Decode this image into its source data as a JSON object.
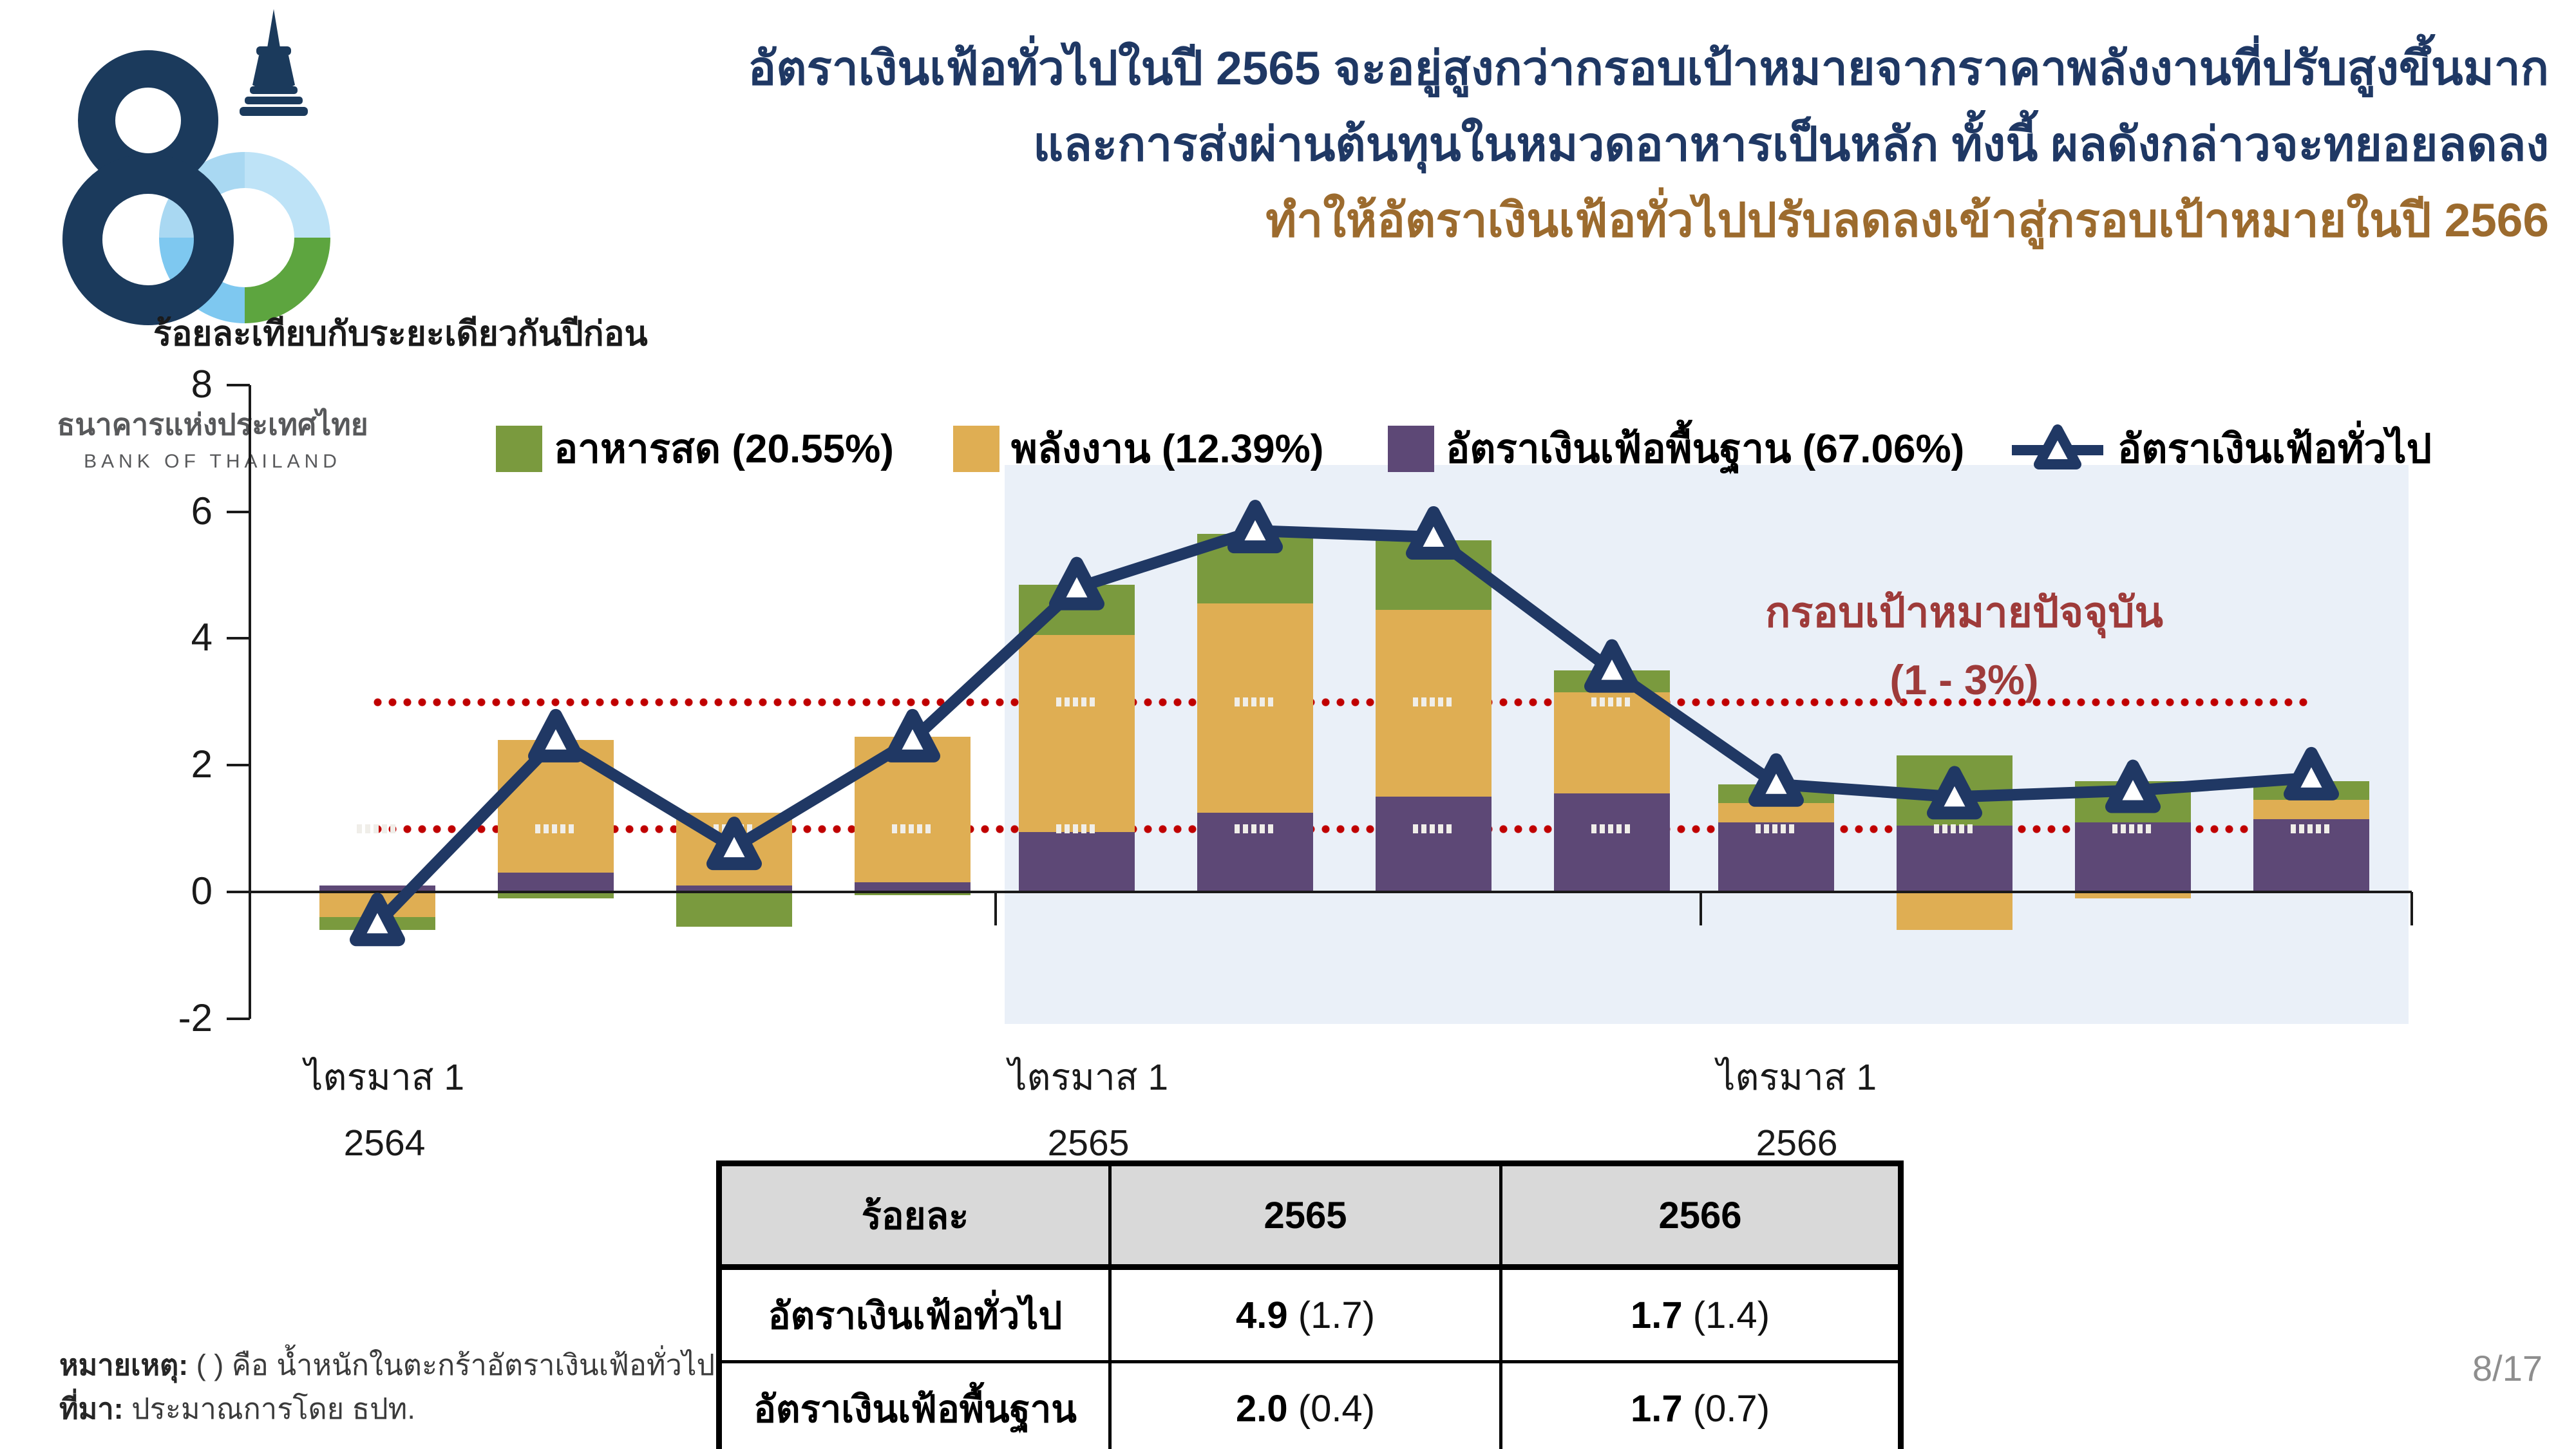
{
  "logo": {
    "name_thai": "ธนาคารแห่งประเทศไทย",
    "name_english": "BANK OF THAILAND"
  },
  "title": {
    "line1": "อัตราเงินเฟ้อทั่วไปในปี 2565 จะอยู่สูงกว่ากรอบเป้าหมายจากราคาพลังงานที่ปรับสูงขึ้นมาก",
    "line2": "และการส่งผ่านต้นทุนในหมวดอาหารเป็นหลัก ทั้งนี้ ผลดังกล่าวจะทยอยลดลง",
    "line3": "ทำให้อัตราเงินเฟ้อทั่วไปปรับลดลงเข้าสู่กรอบเป้าหมายในปี 2566",
    "color_main": "#1F3864",
    "color_accent": "#9C6B2E"
  },
  "chart_data": {
    "type": "combo-stacked-bar-line",
    "y_axis_title": "ร้อยละเทียบกับระยะเดียวกันปีก่อน",
    "y_ticks": [
      8,
      6,
      4,
      2,
      0,
      -2
    ],
    "ylim": [
      -2,
      8
    ],
    "grid": false,
    "legend_position": "top",
    "x_groups": [
      {
        "quarter_label": "ไตรมาส 1",
        "year": "2564"
      },
      {
        "quarter_label": "ไตรมาส 1",
        "year": "2565"
      },
      {
        "quarter_label": "ไตรมาส 1",
        "year": "2566"
      }
    ],
    "quarters_per_group": 4,
    "series": [
      {
        "name": "อาหารสด (20.55%)",
        "color": "#7A9A3E",
        "values": [
          -0.2,
          -0.1,
          -0.55,
          -0.05,
          0.8,
          1.1,
          1.1,
          0.35,
          0.3,
          1.1,
          0.65,
          0.3
        ]
      },
      {
        "name": "พลังงาน (12.39%)",
        "color": "#DFAE53",
        "values": [
          -0.4,
          2.1,
          1.15,
          2.3,
          3.1,
          3.3,
          2.95,
          1.6,
          0.3,
          -0.6,
          -0.1,
          0.3
        ]
      },
      {
        "name": "อัตราเงินเฟ้อพื้นฐาน (67.06%)",
        "color": "#5D4876",
        "values": [
          0.1,
          0.3,
          0.1,
          0.15,
          0.95,
          1.25,
          1.5,
          1.55,
          1.1,
          1.05,
          1.1,
          1.15
        ]
      }
    ],
    "line_series": {
      "name": "อัตราเงินเฟ้อทั่วไป",
      "color": "#203864",
      "values": [
        -0.5,
        2.4,
        0.7,
        2.4,
        4.8,
        5.7,
        5.6,
        3.5,
        1.7,
        1.5,
        1.6,
        1.8
      ]
    },
    "target_band": {
      "lower": 1,
      "upper": 3,
      "label_line1": "กรอบเป้าหมายปัจจุบัน",
      "label_line2": "(1 - 3%)",
      "line_color": "#C00000",
      "label_color": "#9E3B3A"
    },
    "forecast_shading": {
      "from_quarter_index": 4,
      "color": "#EAF0F8"
    }
  },
  "table": {
    "headers": [
      "ร้อยละ",
      "2565",
      "2566"
    ],
    "rows": [
      {
        "label": "อัตราเงินเฟ้อทั่วไป",
        "y2565": "4.9",
        "y2565_paren": "(1.7)",
        "y2566": "1.7",
        "y2566_paren": "(1.4)"
      },
      {
        "label": "อัตราเงินเฟ้อพื้นฐาน",
        "y2565": "2.0",
        "y2565_paren": "(0.4)",
        "y2566": "1.7",
        "y2566_paren": "(0.7)"
      }
    ]
  },
  "notes": {
    "note_label": "หมายเหตุ:",
    "note_text": " ( ) คือ น้ำหนักในตะกร้าอัตราเงินเฟ้อทั่วไป",
    "source_label": "ที่มา:",
    "source_text": " ประมาณการโดย ธปท."
  },
  "page_number": "8/17"
}
